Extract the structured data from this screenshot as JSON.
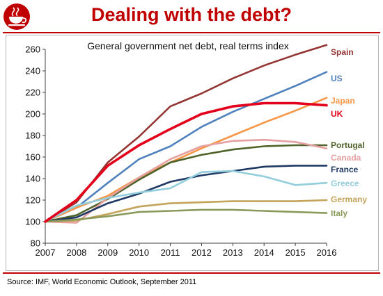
{
  "header": {
    "title": "Dealing with the debt?",
    "logo_icon": "teacup-icon",
    "accent": "#c00000"
  },
  "footer": {
    "source": "Source: IMF, World Economic Outlook, September 2011"
  },
  "chart_data": {
    "type": "line",
    "title": "General government net debt, real terms index",
    "xlabel": "",
    "ylabel": "",
    "x": [
      2007,
      2008,
      2009,
      2010,
      2011,
      2012,
      2013,
      2014,
      2015,
      2016
    ],
    "ylim": [
      80,
      260
    ],
    "yticks": [
      80,
      100,
      120,
      140,
      160,
      180,
      200,
      220,
      240,
      260
    ],
    "grid": false,
    "legend": "right-end labels",
    "series": [
      {
        "name": "Spain",
        "color": "#943634",
        "values": [
          100,
          118,
          155,
          179,
          207,
          219,
          233,
          245,
          255,
          264
        ]
      },
      {
        "name": "US",
        "color": "#4f81bd",
        "values": [
          100,
          113,
          136,
          158,
          170,
          188,
          202,
          214,
          226,
          239
        ]
      },
      {
        "name": "Japan",
        "color": "#f79646",
        "values": [
          100,
          113,
          124,
          141,
          155,
          168,
          180,
          192,
          203,
          215
        ]
      },
      {
        "name": "UK",
        "color": "#e3001b",
        "values": [
          100,
          120,
          152,
          171,
          186,
          200,
          207,
          210,
          210,
          208
        ]
      },
      {
        "name": "Portugal",
        "color": "#4f6228",
        "values": [
          100,
          106,
          121,
          139,
          155,
          162,
          167,
          170,
          171,
          171
        ]
      },
      {
        "name": "Canada",
        "color": "#e6a0a0",
        "values": [
          100,
          99,
          122,
          141,
          158,
          170,
          175,
          176,
          174,
          168
        ]
      },
      {
        "name": "France",
        "color": "#1f3864",
        "values": [
          100,
          104,
          117,
          126,
          137,
          143,
          147,
          151,
          152,
          152
        ]
      },
      {
        "name": "Greece",
        "color": "#92cddc",
        "values": [
          100,
          115,
          122,
          127,
          131,
          146,
          147,
          142,
          134,
          136
        ]
      },
      {
        "name": "Germany",
        "color": "#c4a35a",
        "values": [
          100,
          101,
          107,
          114,
          117,
          118,
          119,
          119,
          119,
          120
        ]
      },
      {
        "name": "Italy",
        "color": "#8a9a5b",
        "values": [
          100,
          102,
          105,
          109,
          110,
          111,
          111,
          110,
          109,
          108
        ]
      }
    ]
  }
}
